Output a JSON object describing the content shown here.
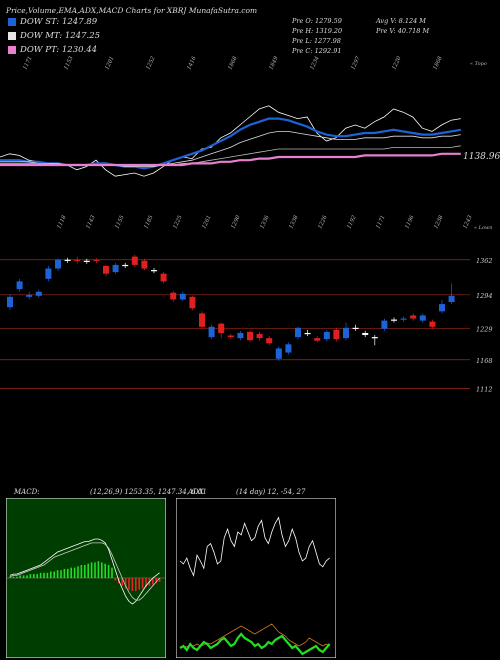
{
  "header": {
    "title": "Price,Volume,EMA,ADX,MACD Charts for XBRJ MunafaSutra.com"
  },
  "legend": [
    {
      "label": "DOW ST: 1247.89",
      "color": "#1e63d6"
    },
    {
      "label": "DOW MT: 1247.25",
      "color": "#e6e6e6"
    },
    {
      "label": "DOW PT: 1230.44",
      "color": "#e87fd0"
    }
  ],
  "stats": {
    "col1": [
      "Pre  O: 1279.59",
      "Pre  H: 1319.20",
      "Pre  L: 1277.98",
      "Pre  C: 1292.91"
    ],
    "col2": [
      "Avg V: 8.124  M",
      "Pre  V: 40.718 M"
    ]
  },
  "colors": {
    "up": "#1e63d6",
    "down": "#e02020",
    "flat": "#ffffff",
    "grid": "#a02818",
    "ema_short": "#1e63d6",
    "ema_long": "#e87fd0",
    "macd_bg": "#003d00",
    "macd_hist_up": "#22dd22",
    "macd_hist_down": "#ee2222",
    "adx_plus": "#22dd22",
    "adx_minus": "#cc7722"
  },
  "chart_data": [
    {
      "type": "line",
      "name": "price-ema-panel",
      "top_label": "« Topo",
      "top_labels": [
        "1171",
        "1153",
        "1201",
        "1252",
        "1416",
        "1868",
        "1849",
        "1234",
        "1297",
        "1220",
        "1868"
      ],
      "last_value_label": "1138.96",
      "series": [
        {
          "values": [
            30,
            32,
            31,
            28,
            27,
            26,
            26,
            25,
            22,
            24,
            28,
            22,
            18,
            19,
            20,
            18,
            20,
            24,
            28,
            30,
            29,
            35,
            36,
            42,
            45,
            50,
            55,
            60,
            62,
            58,
            56,
            54,
            55,
            45,
            40,
            42,
            48,
            50,
            48,
            52,
            55,
            60,
            58,
            55,
            48,
            46,
            50,
            53,
            54
          ]
        },
        {
          "values": [
            28,
            28,
            28,
            27,
            27,
            26,
            26,
            25,
            25,
            25,
            26,
            26,
            25,
            24,
            24,
            23,
            24,
            26,
            28,
            30,
            32,
            34,
            37,
            40,
            43,
            47,
            50,
            52,
            54,
            54,
            53,
            51,
            49,
            46,
            44,
            43,
            43,
            44,
            45,
            45,
            46,
            47,
            46,
            45,
            44,
            44,
            45,
            46,
            47
          ]
        },
        {
          "values": [
            27,
            27,
            27,
            27,
            26,
            26,
            26,
            25,
            25,
            25,
            25,
            25,
            25,
            24,
            24,
            24,
            24,
            25,
            26,
            27,
            28,
            30,
            32,
            34,
            36,
            39,
            41,
            43,
            45,
            46,
            46,
            45,
            44,
            43,
            42,
            41,
            41,
            41,
            42,
            42,
            42,
            43,
            43,
            43,
            42,
            42,
            43,
            43,
            44
          ]
        },
        {
          "values": [
            26,
            26,
            26,
            26,
            26,
            26,
            25,
            25,
            25,
            25,
            25,
            25,
            25,
            25,
            25,
            25,
            25,
            25,
            25,
            26,
            26,
            27,
            28,
            29,
            30,
            31,
            32,
            33,
            34,
            35,
            35,
            35,
            35,
            35,
            35,
            35,
            35,
            35,
            35,
            35,
            35,
            36,
            36,
            36,
            36,
            36,
            36,
            36,
            37
          ]
        },
        {
          "values": [
            25,
            25,
            25,
            25,
            25,
            25,
            25,
            25,
            25,
            25,
            25,
            25,
            25,
            25,
            25,
            25,
            25,
            25,
            25,
            25,
            26,
            26,
            26,
            27,
            27,
            28,
            28,
            29,
            29,
            30,
            30,
            30,
            30,
            30,
            30,
            30,
            30,
            30,
            31,
            31,
            31,
            31,
            31,
            31,
            31,
            31,
            32,
            32,
            32
          ]
        }
      ]
    },
    {
      "type": "candlestick",
      "name": "candle-panel",
      "top_label": "« Lown",
      "top_labels": [
        "1118",
        "1143",
        "1155",
        "1185",
        "1225",
        "1261",
        "1290",
        "1336",
        "1338",
        "1226",
        "1192",
        "1171",
        "1196",
        "1238",
        "1243"
      ],
      "price_labels": [
        "1362",
        "1294",
        "1229",
        "1168",
        "1112"
      ],
      "price_levels": [
        1362,
        1294,
        1229,
        1168,
        1112
      ],
      "ylim": [
        1090,
        1410
      ],
      "candles": [
        {
          "o": 1270,
          "c": 1290,
          "h": 1295,
          "l": 1265,
          "d": "up"
        },
        {
          "o": 1305,
          "c": 1320,
          "h": 1325,
          "l": 1300,
          "d": "up"
        },
        {
          "o": 1290,
          "c": 1294,
          "h": 1300,
          "l": 1285,
          "d": "up"
        },
        {
          "o": 1292,
          "c": 1300,
          "h": 1304,
          "l": 1288,
          "d": "up"
        },
        {
          "o": 1325,
          "c": 1345,
          "h": 1350,
          "l": 1320,
          "d": "up"
        },
        {
          "o": 1345,
          "c": 1362,
          "h": 1365,
          "l": 1340,
          "d": "up"
        },
        {
          "o": 1360,
          "c": 1362,
          "h": 1366,
          "l": 1356,
          "d": "flat"
        },
        {
          "o": 1362,
          "c": 1360,
          "h": 1368,
          "l": 1355,
          "d": "down"
        },
        {
          "o": 1360,
          "c": 1360,
          "h": 1364,
          "l": 1354,
          "d": "flat"
        },
        {
          "o": 1362,
          "c": 1360,
          "h": 1365,
          "l": 1355,
          "d": "down"
        },
        {
          "o": 1350,
          "c": 1335,
          "h": 1352,
          "l": 1330,
          "d": "down"
        },
        {
          "o": 1338,
          "c": 1352,
          "h": 1356,
          "l": 1335,
          "d": "up"
        },
        {
          "o": 1352,
          "c": 1350,
          "h": 1356,
          "l": 1346,
          "d": "flat"
        },
        {
          "o": 1368,
          "c": 1352,
          "h": 1372,
          "l": 1348,
          "d": "down"
        },
        {
          "o": 1360,
          "c": 1345,
          "h": 1364,
          "l": 1342,
          "d": "down"
        },
        {
          "o": 1342,
          "c": 1340,
          "h": 1346,
          "l": 1336,
          "d": "flat"
        },
        {
          "o": 1335,
          "c": 1320,
          "h": 1338,
          "l": 1316,
          "d": "down"
        },
        {
          "o": 1298,
          "c": 1285,
          "h": 1302,
          "l": 1280,
          "d": "down"
        },
        {
          "o": 1285,
          "c": 1296,
          "h": 1300,
          "l": 1282,
          "d": "up"
        },
        {
          "o": 1290,
          "c": 1268,
          "h": 1292,
          "l": 1264,
          "d": "down"
        },
        {
          "o": 1258,
          "c": 1232,
          "h": 1262,
          "l": 1228,
          "d": "down"
        },
        {
          "o": 1212,
          "c": 1232,
          "h": 1236,
          "l": 1208,
          "d": "up"
        },
        {
          "o": 1238,
          "c": 1220,
          "h": 1240,
          "l": 1210,
          "d": "down"
        },
        {
          "o": 1215,
          "c": 1212,
          "h": 1218,
          "l": 1208,
          "d": "down"
        },
        {
          "o": 1210,
          "c": 1220,
          "h": 1224,
          "l": 1206,
          "d": "up"
        },
        {
          "o": 1222,
          "c": 1206,
          "h": 1225,
          "l": 1202,
          "d": "down"
        },
        {
          "o": 1218,
          "c": 1210,
          "h": 1222,
          "l": 1205,
          "d": "down"
        },
        {
          "o": 1210,
          "c": 1200,
          "h": 1214,
          "l": 1196,
          "d": "down"
        },
        {
          "o": 1170,
          "c": 1190,
          "h": 1194,
          "l": 1166,
          "d": "up"
        },
        {
          "o": 1182,
          "c": 1198,
          "h": 1202,
          "l": 1178,
          "d": "up"
        },
        {
          "o": 1212,
          "c": 1230,
          "h": 1232,
          "l": 1208,
          "d": "up"
        },
        {
          "o": 1220,
          "c": 1220,
          "h": 1226,
          "l": 1214,
          "d": "flat"
        },
        {
          "o": 1210,
          "c": 1205,
          "h": 1214,
          "l": 1202,
          "d": "down"
        },
        {
          "o": 1208,
          "c": 1222,
          "h": 1226,
          "l": 1204,
          "d": "up"
        },
        {
          "o": 1226,
          "c": 1208,
          "h": 1230,
          "l": 1204,
          "d": "down"
        },
        {
          "o": 1210,
          "c": 1230,
          "h": 1240,
          "l": 1206,
          "d": "up"
        },
        {
          "o": 1228,
          "c": 1230,
          "h": 1236,
          "l": 1224,
          "d": "flat"
        },
        {
          "o": 1220,
          "c": 1216,
          "h": 1224,
          "l": 1212,
          "d": "flat"
        },
        {
          "o": 1212,
          "c": 1212,
          "h": 1216,
          "l": 1196,
          "d": "flat"
        },
        {
          "o": 1228,
          "c": 1244,
          "h": 1248,
          "l": 1224,
          "d": "up"
        },
        {
          "o": 1246,
          "c": 1244,
          "h": 1250,
          "l": 1240,
          "d": "flat"
        },
        {
          "o": 1246,
          "c": 1248,
          "h": 1252,
          "l": 1242,
          "d": "up"
        },
        {
          "o": 1254,
          "c": 1248,
          "h": 1258,
          "l": 1244,
          "d": "down"
        },
        {
          "o": 1244,
          "c": 1254,
          "h": 1258,
          "l": 1240,
          "d": "up"
        },
        {
          "o": 1242,
          "c": 1232,
          "h": 1246,
          "l": 1228,
          "d": "down"
        },
        {
          "o": 1262,
          "c": 1276,
          "h": 1284,
          "l": 1258,
          "d": "up"
        },
        {
          "o": 1280,
          "c": 1292,
          "h": 1316,
          "l": 1276,
          "d": "up"
        }
      ]
    },
    {
      "type": "line",
      "name": "macd-panel",
      "title": "MACD:",
      "params": "(12,26,9) 1253.35,  1247.34,  6.01",
      "histogram": [
        1,
        1,
        1,
        2,
        2,
        2,
        3,
        3,
        3,
        4,
        4,
        4,
        5,
        5,
        6,
        6,
        7,
        7,
        8,
        8,
        9,
        10,
        10,
        11,
        12,
        12,
        13,
        12,
        11,
        10,
        8,
        -2,
        -4,
        -6,
        -8,
        -9,
        -10,
        -10,
        -9,
        -8,
        -7,
        -6,
        -5,
        -4,
        -3
      ],
      "macd_line": [
        2,
        3,
        3,
        4,
        5,
        6,
        7,
        8,
        9,
        10,
        12,
        14,
        16,
        18,
        20,
        21,
        22,
        23,
        24,
        25,
        26,
        27,
        28,
        28,
        29,
        30,
        30,
        29,
        27,
        22,
        14,
        6,
        -2,
        -8,
        -14,
        -18,
        -20,
        -18,
        -14,
        -10,
        -6,
        -3,
        0,
        2,
        4
      ],
      "signal_line": [
        1,
        2,
        2,
        3,
        4,
        5,
        6,
        7,
        8,
        9,
        10,
        12,
        14,
        16,
        17,
        18,
        19,
        20,
        21,
        22,
        23,
        24,
        25,
        26,
        27,
        27,
        27,
        27,
        26,
        23,
        18,
        12,
        6,
        0,
        -6,
        -11,
        -15,
        -17,
        -17,
        -15,
        -12,
        -9,
        -6,
        -3,
        0
      ]
    },
    {
      "type": "line",
      "name": "adx-panel",
      "title": "ADX",
      "params": "(14 day) 12,  -54,  27",
      "adx": [
        60,
        58,
        62,
        55,
        50,
        64,
        60,
        55,
        70,
        72,
        66,
        58,
        60,
        76,
        82,
        74,
        70,
        80,
        78,
        86,
        80,
        74,
        76,
        84,
        88,
        76,
        72,
        80,
        86,
        90,
        78,
        70,
        74,
        82,
        76,
        66,
        60,
        62,
        70,
        74,
        66,
        58,
        56,
        60,
        62
      ],
      "plus_di": [
        20,
        22,
        18,
        24,
        20,
        18,
        22,
        26,
        24,
        20,
        22,
        24,
        28,
        30,
        26,
        22,
        24,
        30,
        34,
        30,
        28,
        26,
        22,
        24,
        20,
        22,
        26,
        24,
        28,
        30,
        32,
        28,
        24,
        20,
        22,
        18,
        14,
        16,
        18,
        20,
        22,
        18,
        16,
        20,
        24
      ],
      "minus_di": [
        10,
        12,
        11,
        13,
        12,
        14,
        12,
        13,
        15,
        14,
        16,
        18,
        20,
        22,
        24,
        26,
        28,
        30,
        32,
        30,
        28,
        26,
        24,
        26,
        28,
        30,
        32,
        34,
        30,
        26,
        24,
        22,
        18,
        16,
        14,
        12,
        14,
        16,
        20,
        18,
        16,
        14,
        12,
        14,
        12
      ]
    }
  ]
}
